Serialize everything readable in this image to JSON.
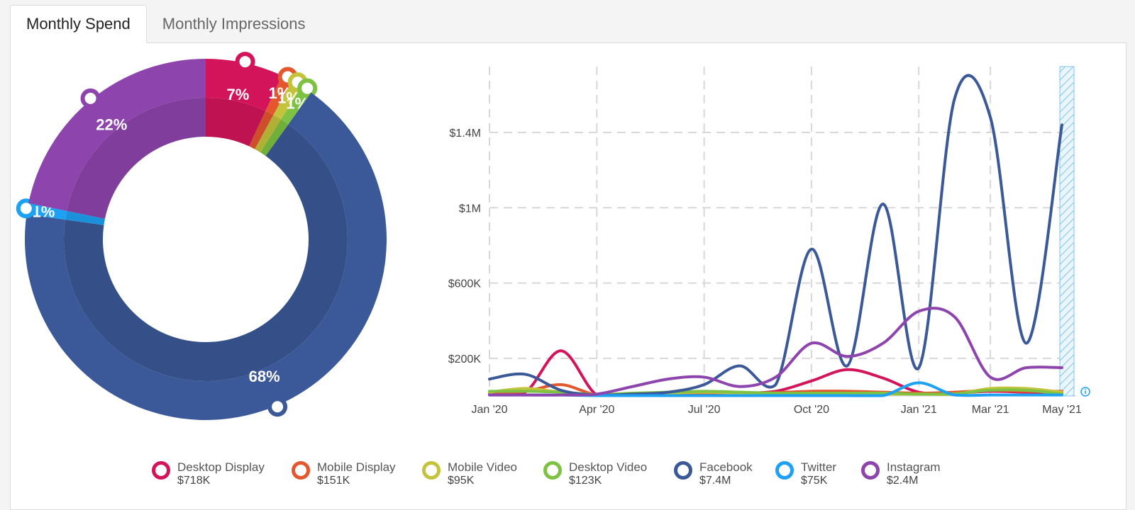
{
  "tabs": [
    {
      "label": "Monthly Spend",
      "active": true
    },
    {
      "label": "Monthly Impressions",
      "active": false
    }
  ],
  "chart_data": [
    {
      "type": "pie",
      "variant": "donut",
      "slices": [
        {
          "name": "Desktop Display",
          "percent": 7,
          "label": "7%",
          "color": "#d4145a"
        },
        {
          "name": "Mobile Display",
          "percent": 1,
          "label": "1%",
          "color": "#e4572e"
        },
        {
          "name": "Mobile Video",
          "percent": 1,
          "label": "1%",
          "color": "#c4c43c"
        },
        {
          "name": "Desktop Video",
          "percent": 1,
          "label": "1%",
          "color": "#7dc242"
        },
        {
          "name": "Facebook",
          "percent": 68,
          "label": "68%",
          "color": "#3b5998"
        },
        {
          "name": "Twitter",
          "percent": 1,
          "label": "1%",
          "color": "#1da1f2"
        },
        {
          "name": "Instagram",
          "percent": 22,
          "label": "22%",
          "color": "#8e44ad"
        }
      ]
    },
    {
      "type": "line",
      "x": [
        "Jan '20",
        "Feb '20",
        "Mar '20",
        "Apr '20",
        "May '20",
        "Jun '20",
        "Jul '20",
        "Aug '20",
        "Sep '20",
        "Oct '20",
        "Nov '20",
        "Dec '20",
        "Jan '21",
        "Feb '21",
        "Mar '21",
        "Apr '21",
        "May '21"
      ],
      "xtick_labels": [
        "Jan '20",
        "Apr '20",
        "Jul '20",
        "Oct '20",
        "Jan '21",
        "Mar '21",
        "May '21"
      ],
      "ytick_labels": [
        "$200K",
        "$600K",
        "$1M",
        "$1.4M"
      ],
      "ytick_values": [
        200000,
        600000,
        1000000,
        1400000
      ],
      "ylim": [
        0,
        1750000
      ],
      "grid": true,
      "series": [
        {
          "name": "Desktop Display",
          "color": "#d4145a",
          "values": [
            15000,
            20000,
            240000,
            5000,
            8000,
            10000,
            12000,
            15000,
            25000,
            80000,
            140000,
            95000,
            20000,
            15000,
            25000,
            20000,
            15000
          ]
        },
        {
          "name": "Mobile Display",
          "color": "#e4572e",
          "values": [
            20000,
            25000,
            60000,
            5000,
            8000,
            10000,
            12000,
            15000,
            18000,
            25000,
            25000,
            20000,
            15000,
            20000,
            30000,
            25000,
            25000
          ]
        },
        {
          "name": "Mobile Video",
          "color": "#c4c43c",
          "values": [
            20000,
            40000,
            20000,
            5000,
            8000,
            15000,
            20000,
            15000,
            10000,
            10000,
            10000,
            10000,
            10000,
            10000,
            40000,
            40000,
            20000
          ]
        },
        {
          "name": "Desktop Video",
          "color": "#7dc242",
          "values": [
            25000,
            25000,
            20000,
            8000,
            15000,
            20000,
            25000,
            20000,
            15000,
            15000,
            15000,
            15000,
            10000,
            12000,
            30000,
            30000,
            10000
          ]
        },
        {
          "name": "Facebook",
          "color": "#3b5998",
          "values": [
            90000,
            115000,
            30000,
            5000,
            10000,
            20000,
            60000,
            160000,
            60000,
            780000,
            160000,
            1020000,
            150000,
            1580000,
            1480000,
            280000,
            1440000
          ]
        },
        {
          "name": "Twitter",
          "color": "#1da1f2",
          "values": [
            5000,
            5000,
            5000,
            2000,
            2000,
            2000,
            2000,
            2000,
            2000,
            2000,
            2000,
            2000,
            70000,
            5000,
            5000,
            5000,
            5000
          ]
        },
        {
          "name": "Instagram",
          "color": "#8e44ad",
          "values": [
            5000,
            5000,
            5000,
            10000,
            50000,
            90000,
            100000,
            50000,
            100000,
            280000,
            210000,
            280000,
            450000,
            420000,
            100000,
            150000,
            150000
          ]
        }
      ]
    }
  ],
  "legend": [
    {
      "name": "Desktop Display",
      "value": "$718K",
      "color": "#d4145a"
    },
    {
      "name": "Mobile Display",
      "value": "$151K",
      "color": "#e4572e"
    },
    {
      "name": "Mobile Video",
      "value": "$95K",
      "color": "#c4c43c"
    },
    {
      "name": "Desktop Video",
      "value": "$123K",
      "color": "#7dc242"
    },
    {
      "name": "Facebook",
      "value": "$7.4M",
      "color": "#3b5998"
    },
    {
      "name": "Twitter",
      "value": "$75K",
      "color": "#1da1f2"
    },
    {
      "name": "Instagram",
      "value": "$2.4M",
      "color": "#8e44ad"
    }
  ],
  "icons": {
    "info": "info-icon"
  }
}
